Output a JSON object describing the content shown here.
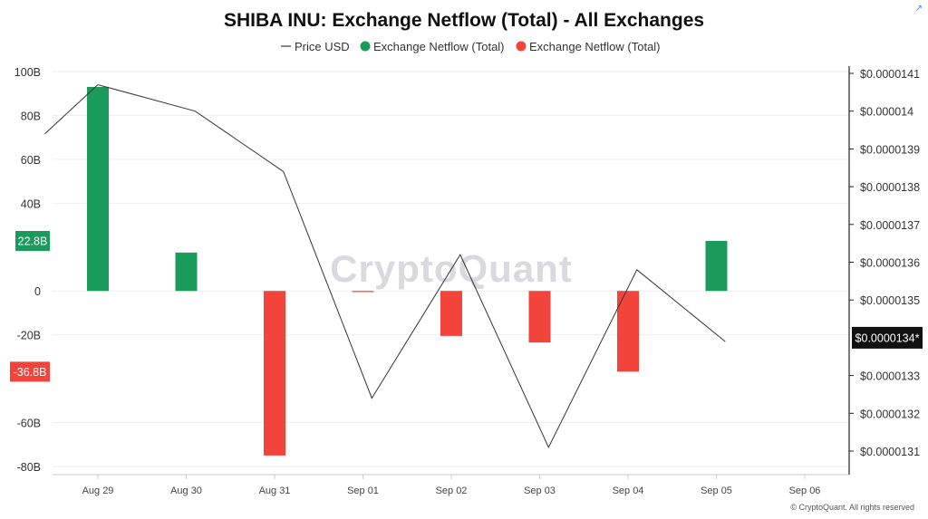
{
  "chart_data": {
    "type": "bar",
    "title": "SHIBA INU: Exchange Netflow (Total) - All Exchanges",
    "legend": {
      "placement": "top-center",
      "entries": [
        {
          "label": "Price USD",
          "marker": "line",
          "color": "#333333"
        },
        {
          "label": "Exchange Netflow (Total)",
          "marker": "dot",
          "color": "#1a9b5c"
        },
        {
          "label": "Exchange Netflow (Total)",
          "marker": "dot",
          "color": "#f2443a"
        }
      ]
    },
    "categories": [
      "Aug 29",
      "Aug 30",
      "Aug 31",
      "Sep 01",
      "Sep 02",
      "Sep 03",
      "Sep 04",
      "Sep 05",
      "Sep 06"
    ],
    "series": [
      {
        "name": "Exchange Netflow (Total)",
        "axis": "left",
        "kind": "bar",
        "values": [
          93,
          17.5,
          -75,
          -0.5,
          -20.5,
          -23.5,
          -36.8,
          22.8,
          null
        ],
        "positive_color": "#1a9b5c",
        "negative_color": "#f2443a"
      },
      {
        "name": "Price USD",
        "axis": "right",
        "kind": "line",
        "color": "#333333",
        "points": [
          {
            "x": 28.4,
            "y": 1.394e-05
          },
          {
            "x": 29.0,
            "y": 1.407e-05
          },
          {
            "x": 30.1,
            "y": 1.4e-05
          },
          {
            "x": 31.1,
            "y": 1.384e-05
          },
          {
            "x": 32.1,
            "y": 1.324e-05
          },
          {
            "x": 33.1,
            "y": 1.362e-05
          },
          {
            "x": 34.1,
            "y": 1.311e-05
          },
          {
            "x": 35.1,
            "y": 1.358e-05
          },
          {
            "x": 36.1,
            "y": 1.339e-05
          }
        ]
      }
    ],
    "y_left": {
      "ylim": [
        -80,
        100
      ],
      "ticks": [
        {
          "v": 100,
          "label": "100B"
        },
        {
          "v": 80,
          "label": "80B"
        },
        {
          "v": 60,
          "label": "60B"
        },
        {
          "v": 40,
          "label": "40B"
        },
        {
          "v": 0,
          "label": "0"
        },
        {
          "v": -20,
          "label": "-20B"
        },
        {
          "v": -60,
          "label": "-60B"
        },
        {
          "v": -80,
          "label": "-80B"
        }
      ]
    },
    "y_right": {
      "ylim": [
        1.31e-05,
        1.41e-05
      ],
      "ticks": [
        {
          "v": 1.41e-05,
          "label": "$0.0000141"
        },
        {
          "v": 1.4e-05,
          "label": "$0.000014"
        },
        {
          "v": 1.39e-05,
          "label": "$0.0000139"
        },
        {
          "v": 1.38e-05,
          "label": "$0.0000138"
        },
        {
          "v": 1.37e-05,
          "label": "$0.0000137"
        },
        {
          "v": 1.36e-05,
          "label": "$0.0000136"
        },
        {
          "v": 1.35e-05,
          "label": "$0.0000135"
        },
        {
          "v": 1.33e-05,
          "label": "$0.0000133"
        },
        {
          "v": 1.32e-05,
          "label": "$0.0000132"
        },
        {
          "v": 1.31e-05,
          "label": "$0.0000131"
        }
      ]
    },
    "badges": [
      {
        "axis": "left",
        "v": 22.8,
        "label": "22.8B",
        "color": "#1a9b5c"
      },
      {
        "axis": "left",
        "v": -36.8,
        "label": "-36.8B",
        "color": "#f2443a"
      },
      {
        "axis": "right",
        "v": 1.34e-05,
        "label": "$0.0000134*",
        "color": "#111111"
      }
    ],
    "grid": true,
    "watermark": "CryptoQuant",
    "credit": "© CryptoQuant. All rights reserved"
  },
  "icons": {
    "corner": "expand-icon"
  }
}
